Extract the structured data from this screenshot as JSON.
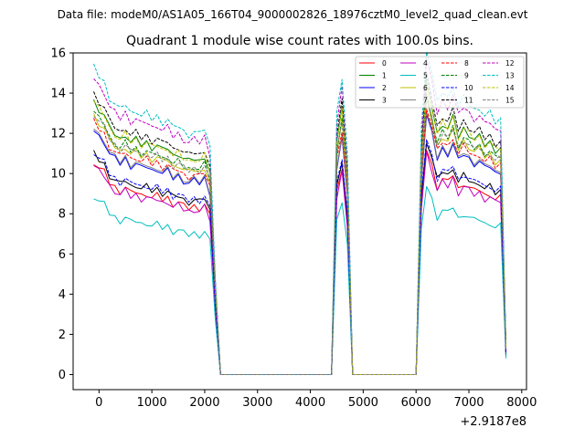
{
  "chart_data": {
    "type": "line",
    "suptitle": "Data file: modeM0/AS1A05_166T04_9000002826_18976cztM0_level2_quad_clean.evt",
    "title": "Quadrant 1 module wise count rates with 100.0s bins.",
    "xlabel": "",
    "ylabel": "",
    "x_offset_label": "+2.9187e8",
    "xlim": [
      -490,
      8090
    ],
    "ylim": [
      -0.75,
      16.0
    ],
    "xticks": [
      0,
      1000,
      2000,
      3000,
      4000,
      5000,
      6000,
      7000,
      8000
    ],
    "yticks": [
      0,
      2,
      4,
      6,
      8,
      10,
      12,
      14,
      16
    ],
    "legend": {
      "placement": "top-right",
      "columns": 4
    },
    "base_curve": {
      "comment": "shared time grid (s, relative to offset) and normalized shape; each series value = base_shape * scale",
      "x": [
        -100,
        0,
        100,
        200,
        300,
        400,
        500,
        600,
        700,
        800,
        900,
        1000,
        1100,
        1200,
        1300,
        1400,
        1500,
        1600,
        1700,
        1800,
        1900,
        2000,
        2100,
        2200,
        2300,
        2400,
        4400,
        4500,
        4600,
        4700,
        4800,
        6000,
        6100,
        6200,
        6300,
        6400,
        6500,
        6600,
        6700,
        6800,
        6900,
        7000,
        7100,
        7200,
        7300,
        7400,
        7500,
        7600,
        7700
      ],
      "shape": [
        1.0,
        0.97,
        0.95,
        0.9,
        0.88,
        0.86,
        0.88,
        0.85,
        0.86,
        0.84,
        0.85,
        0.83,
        0.84,
        0.82,
        0.83,
        0.8,
        0.81,
        0.79,
        0.78,
        0.79,
        0.78,
        0.8,
        0.74,
        0.32,
        0.0,
        0.0,
        0.0,
        0.85,
        0.97,
        0.72,
        0.0,
        0.0,
        0.8,
        1.06,
        0.98,
        0.88,
        0.92,
        0.9,
        0.94,
        0.87,
        0.9,
        0.88,
        0.86,
        0.87,
        0.84,
        0.85,
        0.82,
        0.83,
        0.1
      ]
    },
    "series": [
      {
        "name": "0",
        "color": "#ff0000",
        "dashed": false,
        "scale": 10.6
      },
      {
        "name": "1",
        "color": "#008000",
        "dashed": false,
        "scale": 13.6
      },
      {
        "name": "2",
        "color": "#0000ff",
        "dashed": false,
        "scale": 12.2
      },
      {
        "name": "3",
        "color": "#000000",
        "dashed": false,
        "scale": 11.0
      },
      {
        "name": "4",
        "color": "#bf00bf",
        "dashed": false,
        "scale": 10.4
      },
      {
        "name": "5",
        "color": "#00bfbf",
        "dashed": false,
        "scale": 8.9
      },
      {
        "name": "6",
        "color": "#bfbf00",
        "dashed": false,
        "scale": 12.9
      },
      {
        "name": "7",
        "color": "#808080",
        "dashed": false,
        "scale": 12.3
      },
      {
        "name": "8",
        "color": "#ff0000",
        "dashed": true,
        "scale": 12.6
      },
      {
        "name": "9",
        "color": "#008000",
        "dashed": true,
        "scale": 13.1
      },
      {
        "name": "10",
        "color": "#0000ff",
        "dashed": true,
        "scale": 11.1
      },
      {
        "name": "11",
        "color": "#000000",
        "dashed": true,
        "scale": 14.0
      },
      {
        "name": "12",
        "color": "#bf00bf",
        "dashed": true,
        "scale": 14.8
      },
      {
        "name": "13",
        "color": "#00bfbf",
        "dashed": true,
        "scale": 15.3
      },
      {
        "name": "14",
        "color": "#bfbf00",
        "dashed": true,
        "scale": 13.6
      },
      {
        "name": "15",
        "color": "#808080",
        "dashed": true,
        "scale": 13.0
      }
    ]
  }
}
